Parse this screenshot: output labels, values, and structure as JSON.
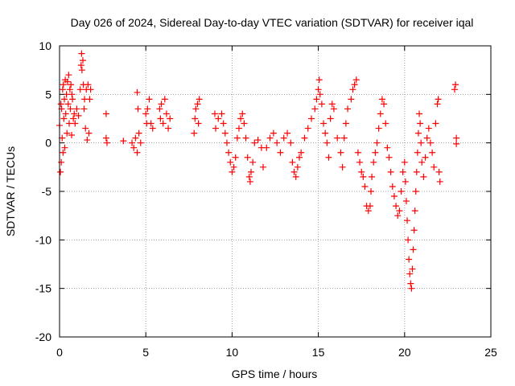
{
  "chart_data": {
    "type": "scatter",
    "title": "Day 026 of 2024, Sidereal Day-to-day VTEC variation (SDTVAR) for receiver iqal",
    "xlabel": "GPS time / hours",
    "ylabel": "SDTVAR / TECUs",
    "xlim": [
      0,
      25
    ],
    "ylim": [
      -20,
      10
    ],
    "xticks": [
      0,
      5,
      10,
      15,
      20,
      25
    ],
    "yticks": [
      -20,
      -15,
      -10,
      -5,
      0,
      5,
      10
    ],
    "grid": true,
    "marker": "+",
    "marker_color": "#ff0000",
    "series": [
      {
        "name": "SDTVAR",
        "points": [
          [
            0.0,
            1.8
          ],
          [
            0.05,
            -3.0
          ],
          [
            0.08,
            4.0
          ],
          [
            0.1,
            -2.0
          ],
          [
            0.12,
            3.5
          ],
          [
            0.15,
            0.5
          ],
          [
            0.18,
            5.5
          ],
          [
            0.2,
            -1.0
          ],
          [
            0.22,
            6.0
          ],
          [
            0.25,
            2.5
          ],
          [
            0.28,
            4.5
          ],
          [
            0.3,
            -0.5
          ],
          [
            0.33,
            6.5
          ],
          [
            0.36,
            3.0
          ],
          [
            0.4,
            5.0
          ],
          [
            0.43,
            1.0
          ],
          [
            0.46,
            6.3
          ],
          [
            0.5,
            4.0
          ],
          [
            0.53,
            7.0
          ],
          [
            0.56,
            2.0
          ],
          [
            0.6,
            5.5
          ],
          [
            0.63,
            3.5
          ],
          [
            0.66,
            6.0
          ],
          [
            0.7,
            0.8
          ],
          [
            0.72,
            5.0
          ],
          [
            0.75,
            4.5
          ],
          [
            0.8,
            2.5
          ],
          [
            0.85,
            3.0
          ],
          [
            0.9,
            2.0
          ],
          [
            1.0,
            3.5
          ],
          [
            1.1,
            2.8
          ],
          [
            1.2,
            5.5
          ],
          [
            1.25,
            8.0
          ],
          [
            1.28,
            9.2
          ],
          [
            1.3,
            7.5
          ],
          [
            1.35,
            8.5
          ],
          [
            1.38,
            6.0
          ],
          [
            1.42,
            3.5
          ],
          [
            1.45,
            4.5
          ],
          [
            1.5,
            1.5
          ],
          [
            1.55,
            5.5
          ],
          [
            1.6,
            0.3
          ],
          [
            1.65,
            6.0
          ],
          [
            1.7,
            1.0
          ],
          [
            1.75,
            4.5
          ],
          [
            1.8,
            5.5
          ],
          [
            2.7,
            3.0
          ],
          [
            2.7,
            0.5
          ],
          [
            2.75,
            0.0
          ],
          [
            3.7,
            0.2
          ],
          [
            4.2,
            0.0
          ],
          [
            4.3,
            -0.5
          ],
          [
            4.4,
            0.5
          ],
          [
            4.5,
            -1.0
          ],
          [
            4.5,
            5.2
          ],
          [
            4.55,
            3.5
          ],
          [
            4.6,
            1.0
          ],
          [
            4.7,
            0.0
          ],
          [
            5.0,
            3.0
          ],
          [
            5.05,
            2.0
          ],
          [
            5.1,
            3.5
          ],
          [
            5.2,
            4.5
          ],
          [
            5.3,
            2.0
          ],
          [
            5.4,
            1.5
          ],
          [
            5.8,
            3.5
          ],
          [
            5.85,
            2.5
          ],
          [
            5.9,
            4.0
          ],
          [
            6.0,
            2.0
          ],
          [
            6.1,
            4.5
          ],
          [
            6.2,
            3.0
          ],
          [
            6.3,
            1.5
          ],
          [
            6.4,
            2.5
          ],
          [
            7.8,
            1.0
          ],
          [
            7.85,
            2.5
          ],
          [
            7.9,
            3.5
          ],
          [
            8.0,
            4.0
          ],
          [
            8.05,
            2.0
          ],
          [
            8.1,
            4.5
          ],
          [
            9.0,
            3.0
          ],
          [
            9.05,
            1.5
          ],
          [
            9.2,
            2.5
          ],
          [
            9.4,
            3.0
          ],
          [
            9.5,
            2.0
          ],
          [
            9.6,
            1.0
          ],
          [
            9.7,
            0.0
          ],
          [
            9.8,
            -1.0
          ],
          [
            9.9,
            -2.0
          ],
          [
            10.0,
            -3.0
          ],
          [
            10.1,
            -2.5
          ],
          [
            10.2,
            -1.5
          ],
          [
            10.3,
            0.5
          ],
          [
            10.4,
            1.5
          ],
          [
            10.5,
            2.5
          ],
          [
            10.6,
            3.0
          ],
          [
            10.7,
            2.0
          ],
          [
            10.8,
            0.5
          ],
          [
            10.9,
            -1.5
          ],
          [
            11.0,
            -3.5
          ],
          [
            11.05,
            -4.0
          ],
          [
            11.1,
            -3.0
          ],
          [
            11.2,
            -2.0
          ],
          [
            11.3,
            0.0
          ],
          [
            11.5,
            0.3
          ],
          [
            11.7,
            -0.5
          ],
          [
            11.8,
            -2.5
          ],
          [
            12.0,
            -0.5
          ],
          [
            12.2,
            0.5
          ],
          [
            12.4,
            1.0
          ],
          [
            12.6,
            0.0
          ],
          [
            12.8,
            -1.0
          ],
          [
            13.0,
            0.5
          ],
          [
            13.2,
            1.0
          ],
          [
            13.4,
            0.0
          ],
          [
            13.5,
            -2.0
          ],
          [
            13.6,
            -3.0
          ],
          [
            13.7,
            -3.5
          ],
          [
            13.8,
            -2.5
          ],
          [
            13.9,
            -1.5
          ],
          [
            14.0,
            -1.0
          ],
          [
            14.2,
            0.5
          ],
          [
            14.4,
            1.5
          ],
          [
            14.6,
            2.5
          ],
          [
            14.8,
            3.5
          ],
          [
            14.9,
            4.5
          ],
          [
            15.0,
            5.5
          ],
          [
            15.05,
            6.5
          ],
          [
            15.1,
            5.0
          ],
          [
            15.2,
            4.0
          ],
          [
            15.3,
            2.0
          ],
          [
            15.4,
            1.0
          ],
          [
            15.5,
            0.0
          ],
          [
            15.6,
            -1.5
          ],
          [
            15.7,
            2.5
          ],
          [
            15.8,
            4.0
          ],
          [
            15.9,
            3.5
          ],
          [
            16.1,
            0.5
          ],
          [
            16.3,
            -1.0
          ],
          [
            16.4,
            -2.5
          ],
          [
            16.5,
            0.5
          ],
          [
            16.6,
            2.0
          ],
          [
            16.7,
            3.5
          ],
          [
            16.9,
            4.5
          ],
          [
            17.0,
            5.5
          ],
          [
            17.1,
            6.0
          ],
          [
            17.2,
            6.5
          ],
          [
            17.3,
            -1.0
          ],
          [
            17.4,
            -2.0
          ],
          [
            17.5,
            -3.0
          ],
          [
            17.6,
            -3.5
          ],
          [
            17.7,
            -4.5
          ],
          [
            17.8,
            -6.5
          ],
          [
            17.9,
            -7.0
          ],
          [
            18.0,
            -6.5
          ],
          [
            18.05,
            -5.0
          ],
          [
            18.1,
            -3.5
          ],
          [
            18.2,
            -2.0
          ],
          [
            18.3,
            -1.0
          ],
          [
            18.4,
            0.0
          ],
          [
            18.5,
            1.5
          ],
          [
            18.6,
            3.0
          ],
          [
            18.7,
            4.5
          ],
          [
            18.8,
            4.0
          ],
          [
            18.9,
            2.0
          ],
          [
            19.0,
            -0.5
          ],
          [
            19.1,
            -1.5
          ],
          [
            19.2,
            -3.0
          ],
          [
            19.3,
            -4.5
          ],
          [
            19.4,
            -5.5
          ],
          [
            19.5,
            -6.5
          ],
          [
            19.6,
            -7.5
          ],
          [
            19.7,
            -7.0
          ],
          [
            19.8,
            -5.0
          ],
          [
            19.9,
            -3.0
          ],
          [
            20.0,
            -2.0
          ],
          [
            20.05,
            -4.0
          ],
          [
            20.1,
            -6.0
          ],
          [
            20.15,
            -8.0
          ],
          [
            20.2,
            -10.0
          ],
          [
            20.25,
            -12.0
          ],
          [
            20.3,
            -13.5
          ],
          [
            20.35,
            -14.5
          ],
          [
            20.4,
            -15.0
          ],
          [
            20.45,
            -13.0
          ],
          [
            20.5,
            -11.0
          ],
          [
            20.55,
            -9.0
          ],
          [
            20.6,
            -7.0
          ],
          [
            20.65,
            -5.0
          ],
          [
            20.7,
            -3.0
          ],
          [
            20.75,
            -1.0
          ],
          [
            20.8,
            1.0
          ],
          [
            20.85,
            3.0
          ],
          [
            20.9,
            2.0
          ],
          [
            20.95,
            0.0
          ],
          [
            21.0,
            -2.0
          ],
          [
            21.1,
            -3.5
          ],
          [
            21.2,
            -1.5
          ],
          [
            21.3,
            0.5
          ],
          [
            21.4,
            1.5
          ],
          [
            21.5,
            0.0
          ],
          [
            21.6,
            -1.0
          ],
          [
            21.7,
            -2.5
          ],
          [
            21.8,
            2.0
          ],
          [
            21.9,
            4.0
          ],
          [
            21.95,
            4.5
          ],
          [
            22.0,
            -3.0
          ],
          [
            22.05,
            -4.0
          ],
          [
            22.9,
            5.5
          ],
          [
            22.95,
            6.0
          ],
          [
            23.0,
            0.5
          ],
          [
            23.0,
            -0.1
          ]
        ]
      }
    ]
  }
}
